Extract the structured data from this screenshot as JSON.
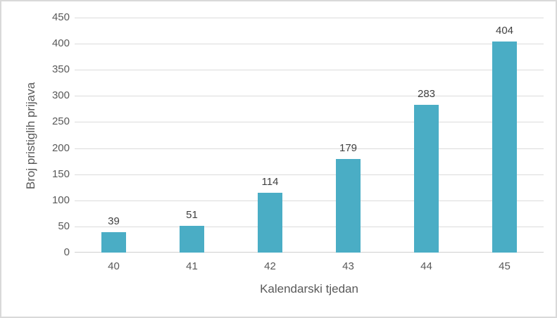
{
  "chart_data": {
    "type": "bar",
    "title": "",
    "categories": [
      "40",
      "41",
      "42",
      "43",
      "44",
      "45"
    ],
    "values": [
      39,
      51,
      114,
      179,
      283,
      404
    ],
    "xlabel": "Kalendarski tjedan",
    "ylabel": "Broj pristiglih prijava",
    "ylim": [
      0,
      450
    ],
    "ytick_step": 50,
    "yticks": [
      0,
      50,
      100,
      150,
      200,
      250,
      300,
      350,
      400,
      450
    ],
    "grid": true,
    "legend": false,
    "data_labels": true,
    "colors": {
      "bar": "#4aadc5",
      "gridline": "#dbdbdb",
      "axis_line": "#d0d0d0",
      "tick_text": "#595959",
      "data_label_text": "#404040",
      "axis_title_text": "#595959",
      "border": "#d9d9d9",
      "background": "#ffffff"
    }
  }
}
